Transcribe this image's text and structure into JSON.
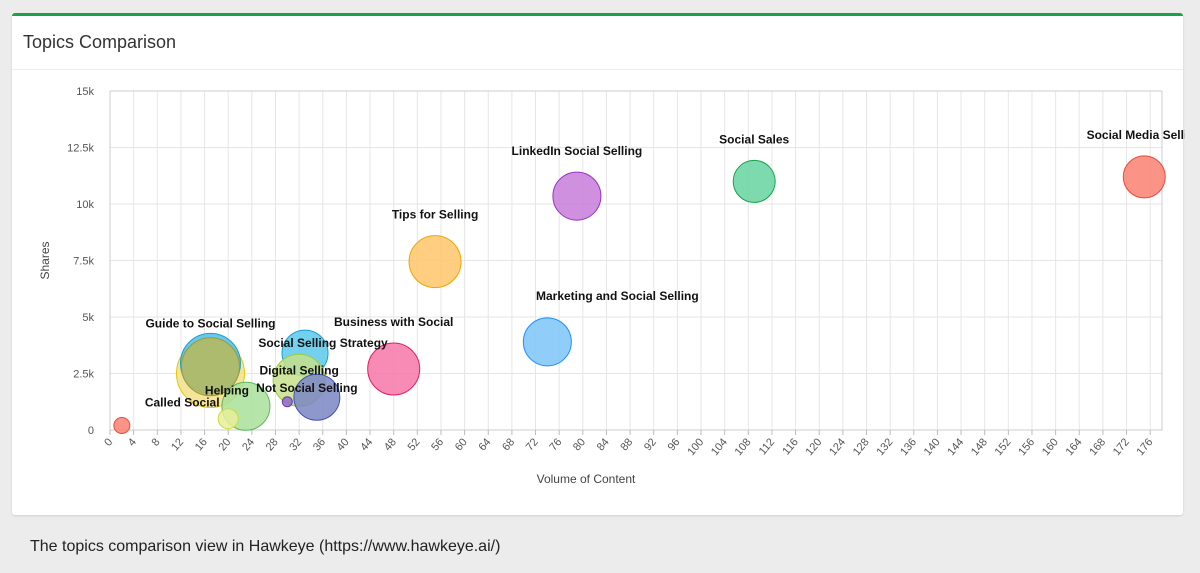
{
  "card": {
    "title": "Topics Comparison"
  },
  "caption": "The topics comparison view in Hawkeye (https://www.hawkeye.ai/)",
  "chart_data": {
    "type": "scatter",
    "title": "",
    "xlabel": "Volume of Content",
    "ylabel": "Shares",
    "xlim": [
      0,
      178
    ],
    "ylim": [
      0,
      15000
    ],
    "x_ticks": [
      "0",
      "4",
      "8",
      "12",
      "16",
      "20",
      "24",
      "28",
      "32",
      "36",
      "40",
      "44",
      "48",
      "52",
      "56",
      "60",
      "64",
      "68",
      "72",
      "76",
      "80",
      "84",
      "88",
      "92",
      "96",
      "100",
      "104",
      "108",
      "112",
      "116",
      "120",
      "124",
      "128",
      "132",
      "136",
      "140",
      "144",
      "148",
      "152",
      "156",
      "160",
      "164",
      "168",
      "172",
      "176"
    ],
    "y_ticks": [
      "0",
      "2.5k",
      "5k",
      "7.5k",
      "10k",
      "12.5k",
      "15k"
    ],
    "grid": true,
    "series": [
      {
        "name": "Social Media Selling",
        "x": 175,
        "y": 11200,
        "size": 21,
        "fill": "#fa8072",
        "stroke": "#e74c3c",
        "label": "Social Media Selling"
      },
      {
        "name": "Social Sales",
        "x": 109,
        "y": 11000,
        "size": 21,
        "fill": "#66d3a0",
        "stroke": "#16a34a",
        "label": "Social Sales"
      },
      {
        "name": "LinkedIn Social Selling",
        "x": 79,
        "y": 10350,
        "size": 24,
        "fill": "#c77ddb",
        "stroke": "#9b30c8",
        "label": "LinkedIn Social Selling"
      },
      {
        "name": "Tips for Selling",
        "x": 55,
        "y": 7450,
        "size": 26,
        "fill": "#ffc56b",
        "stroke": "#f0a500",
        "label": "Tips for Selling"
      },
      {
        "name": "Marketing and Social Selling",
        "x": 74,
        "y": 3900,
        "size": 24,
        "fill": "#7cc4f8",
        "stroke": "#1e90ff",
        "label": "Marketing and Social Selling"
      },
      {
        "name": "Business with Social",
        "x": 48,
        "y": 2700,
        "size": 26,
        "fill": "#f777a8",
        "stroke": "#e01e63",
        "label": "Business with Social"
      },
      {
        "name": "Guide to Social Selling",
        "x": 17,
        "y": 2500,
        "size": 34,
        "fill": "#f2e08a",
        "stroke": "#e6c700",
        "label": "Guide to Social Selling"
      },
      {
        "name": "Guide to Social Selling (2)",
        "x": 17,
        "y": 2950,
        "size": 30,
        "fill": "#4fc0e8",
        "stroke": "#1a9ed0",
        "label": ""
      },
      {
        "name": "Guide to Social Selling (3)",
        "x": 17,
        "y": 2800,
        "size": 29,
        "fill": "#b9b95a",
        "stroke": "#9a9a3a",
        "label": ""
      },
      {
        "name": "Social Selling Strategy",
        "x": 33,
        "y": 3400,
        "size": 23,
        "fill": "#5cc8ec",
        "stroke": "#1a9ed0",
        "label": "Social Selling Strategy"
      },
      {
        "name": "Digital Selling",
        "x": 32,
        "y": 2200,
        "size": 26,
        "fill": "#c5e08a",
        "stroke": "#9ccc3a",
        "label": "Digital Selling"
      },
      {
        "name": "Not Social Selling",
        "x": 35,
        "y": 1450,
        "size": 23,
        "fill": "#7a86c4",
        "stroke": "#3f51b5",
        "label": "Not Social Selling"
      },
      {
        "name": "Helping",
        "x": 23,
        "y": 1050,
        "size": 24,
        "fill": "#a9e09a",
        "stroke": "#5cb85c",
        "label": "Helping"
      },
      {
        "name": "Called Social",
        "x": 20,
        "y": 500,
        "size": 10,
        "fill": "#e8ef9a",
        "stroke": "#cddc39",
        "label": "Called Social"
      },
      {
        "name": "Small dot",
        "x": 30,
        "y": 1250,
        "size": 5,
        "fill": "#8e6bbf",
        "stroke": "#673ab7",
        "label": ""
      },
      {
        "name": "Origin dot",
        "x": 2,
        "y": 200,
        "size": 8,
        "fill": "#fa8072",
        "stroke": "#e74c3c",
        "label": ""
      }
    ]
  }
}
